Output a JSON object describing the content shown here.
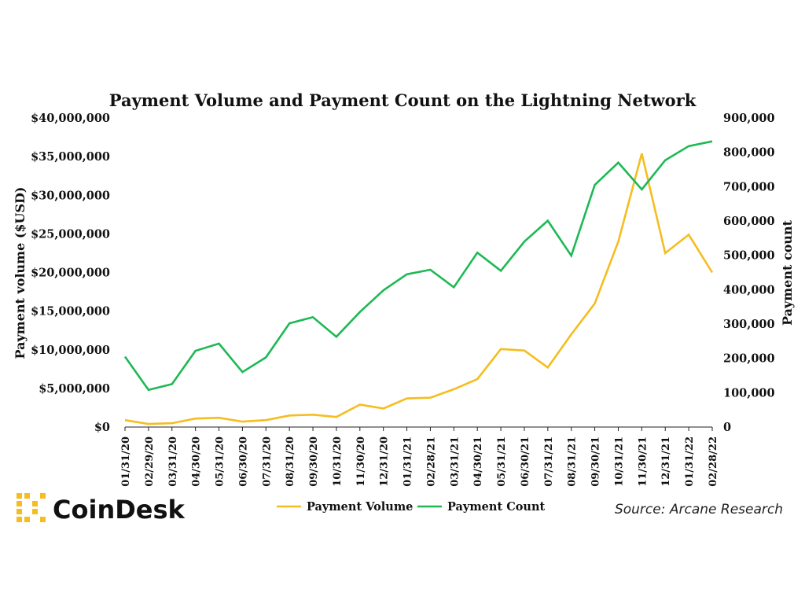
{
  "colors": {
    "volume": "#f5bd1f",
    "count": "#1db954",
    "axis": "#222222",
    "logo_accent": "#f5bd1f"
  },
  "brand": {
    "name": "CoinDesk",
    "logo_icon": "coindesk-logo-icon"
  },
  "source": "Source:  Arcane Research",
  "chart_data": {
    "type": "line",
    "title": "Payment Volume and Payment Count on the Lightning Network",
    "xlabel": "",
    "ylabel": "Payment volume ($USD)",
    "y2label": "Payment count",
    "x": [
      "01/31/20",
      "02/29/20",
      "03/31/20",
      "04/30/20",
      "05/31/20",
      "06/30/20",
      "07/31/20",
      "08/31/20",
      "09/30/20",
      "10/31/20",
      "11/30/20",
      "12/31/20",
      "01/31/21",
      "02/28/21",
      "03/31/21",
      "04/30/21",
      "05/31/21",
      "06/30/21",
      "07/31/21",
      "08/31/21",
      "09/30/21",
      "10/31/21",
      "11/30/21",
      "12/31/21",
      "01/31/22",
      "02/28/22"
    ],
    "ylim": [
      0,
      40000000
    ],
    "y2lim": [
      0,
      900000
    ],
    "yticks": [
      "$0",
      "$5,000,000",
      "$10,000,000",
      "$15,000,000",
      "$20,000,000",
      "$25,000,000",
      "$30,000,000",
      "$35,000,000",
      "$40,000,000"
    ],
    "y2ticks": [
      "0",
      "100,000",
      "200,000",
      "300,000",
      "400,000",
      "500,000",
      "600,000",
      "700,000",
      "800,000",
      "900,000"
    ],
    "grid": false,
    "legend_position": "bottom-center",
    "series": [
      {
        "name": "Payment Volume",
        "axis": "left",
        "values": [
          900000,
          400000,
          500000,
          1100000,
          1200000,
          700000,
          900000,
          1500000,
          1600000,
          1300000,
          2900000,
          2400000,
          3700000,
          3800000,
          4900000,
          6200000,
          10100000,
          9900000,
          7700000,
          12000000,
          16000000,
          24000000,
          35400000,
          22500000,
          24900000,
          20000000
        ]
      },
      {
        "name": "Payment Count",
        "axis": "right",
        "values": [
          205000,
          108000,
          125000,
          222000,
          243000,
          160000,
          203000,
          302000,
          320000,
          263000,
          335000,
          398000,
          445000,
          458000,
          407000,
          508000,
          455000,
          540000,
          601000,
          499000,
          705000,
          770000,
          692000,
          777000,
          818000,
          832000
        ]
      }
    ]
  }
}
